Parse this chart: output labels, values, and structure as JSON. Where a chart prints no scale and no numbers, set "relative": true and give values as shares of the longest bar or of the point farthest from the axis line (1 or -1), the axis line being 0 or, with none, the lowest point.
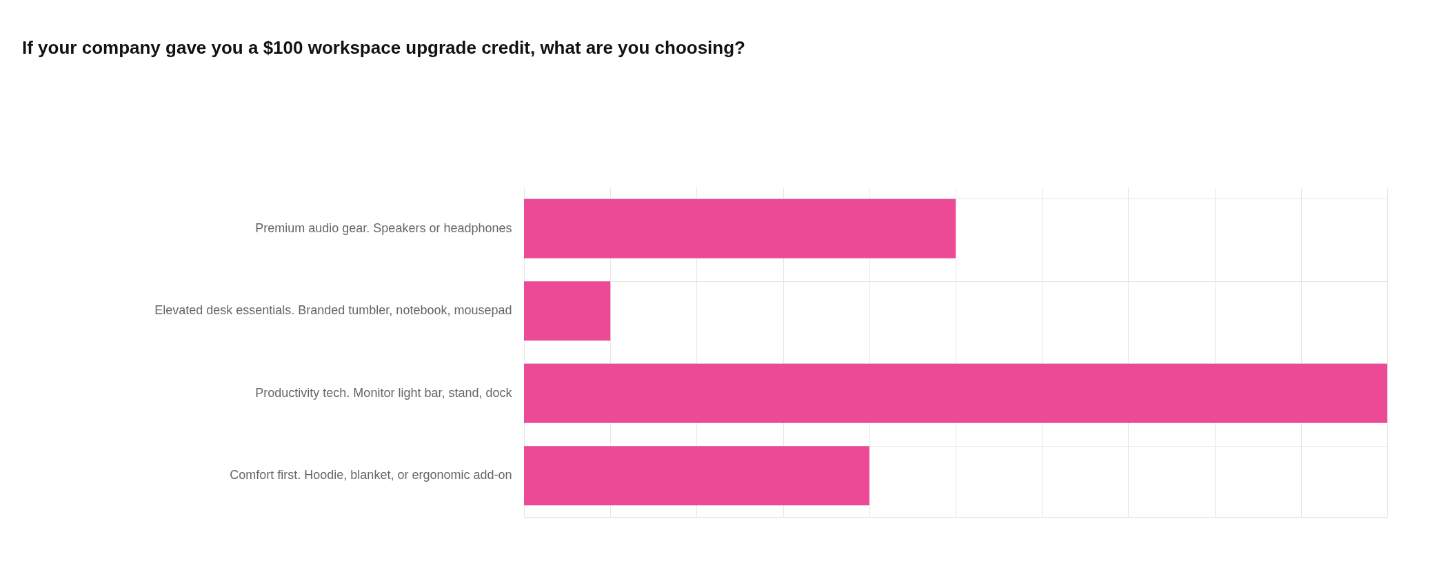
{
  "chart_data": {
    "type": "bar",
    "orientation": "horizontal",
    "relative": true,
    "title": "If your company gave you a $100 workspace upgrade credit, what are you choosing?",
    "categories": [
      "Premium audio gear. Speakers or headphones",
      "Elevated desk essentials. Branded tumbler, notebook, mousepad",
      "Productivity tech. Monitor light bar, stand, dock",
      "Comfort first. Hoodie, blanket, or ergonomic add-on"
    ],
    "values": [
      0.5,
      0.1,
      1,
      0.4
    ],
    "color": "#ec4a97",
    "grid": true
  }
}
